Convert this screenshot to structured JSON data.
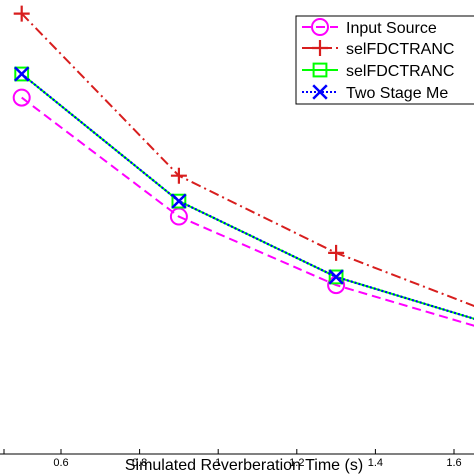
{
  "chart_data": {
    "type": "line",
    "title": "",
    "xlabel": "Simulated Reverberation Time (s)",
    "ylabel": "",
    "xlim": [
      0.4,
      1.7
    ],
    "ylim": [
      0,
      1
    ],
    "xticks": [
      0.6,
      0.8,
      1,
      1.2,
      1.4,
      1.6
    ],
    "xtick_labels": [
      "0.6",
      "0.8",
      "1",
      "1.2",
      "1.4",
      "1.6"
    ],
    "grid": false,
    "legend_position": "top-right",
    "series": [
      {
        "name": "Input Source",
        "color": "#ff00ff",
        "line_style": "dashed",
        "marker": "circle",
        "x": [
          0.5,
          0.9,
          1.3,
          1.7
        ],
        "y": [
          0.785,
          0.523,
          0.372,
          0.27
        ]
      },
      {
        "name": "selFDCTRANC",
        "color": "#d81e1e",
        "line_style": "dashdot",
        "marker": "plus",
        "x": [
          0.5,
          0.9,
          1.3,
          1.7
        ],
        "y": [
          0.97,
          0.613,
          0.443,
          0.31
        ]
      },
      {
        "name": "selFDCTRANC",
        "color": "#00ff00",
        "line_style": "solid",
        "marker": "square",
        "x": [
          0.5,
          0.9,
          1.3,
          1.7
        ],
        "y": [
          0.837,
          0.557,
          0.39,
          0.285
        ]
      },
      {
        "name": "Two Stage Me",
        "color": "#0000ff",
        "line_style": "dotted",
        "marker": "x",
        "x": [
          0.5,
          0.9,
          1.3,
          1.7
        ],
        "y": [
          0.837,
          0.557,
          0.39,
          0.285
        ]
      }
    ]
  }
}
